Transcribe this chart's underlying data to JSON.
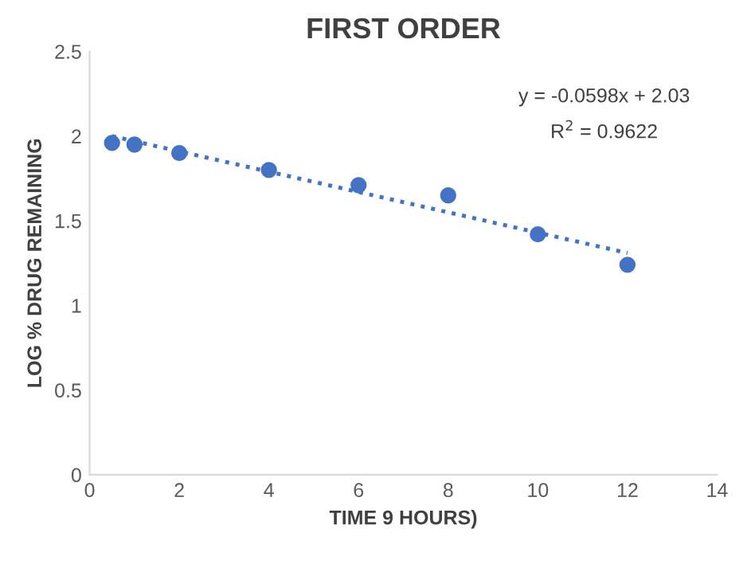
{
  "chart_data": {
    "type": "scatter",
    "title": "FIRST ORDER",
    "xlabel": "TIME 9 HOURS)",
    "ylabel": "LOG % DRUG REMAINING",
    "x": [
      0.5,
      1,
      2,
      4,
      6,
      8,
      10,
      12
    ],
    "series": [
      {
        "color": "#4472c4",
        "marker": "circle",
        "values": [
          1.96,
          1.95,
          1.9,
          1.8,
          1.71,
          1.65,
          1.42,
          1.24
        ]
      },
      {
        "type": "line",
        "color": "#4472c4",
        "line_style": "dotted",
        "x": [
          0.5,
          12
        ],
        "values": [
          2.0,
          1.31
        ]
      }
    ],
    "annotations": [
      "y = -0.0598x + 2.03",
      "R$^{2}$ = 0.9622"
    ],
    "xlim": [
      0,
      14
    ],
    "xticks": [
      0,
      2,
      4,
      6,
      8,
      10,
      12,
      14
    ],
    "ylim": [
      0,
      2.5
    ],
    "yticks": [
      0,
      0.5,
      1,
      1.5,
      2,
      2.5
    ],
    "grid": false,
    "legend": false
  }
}
